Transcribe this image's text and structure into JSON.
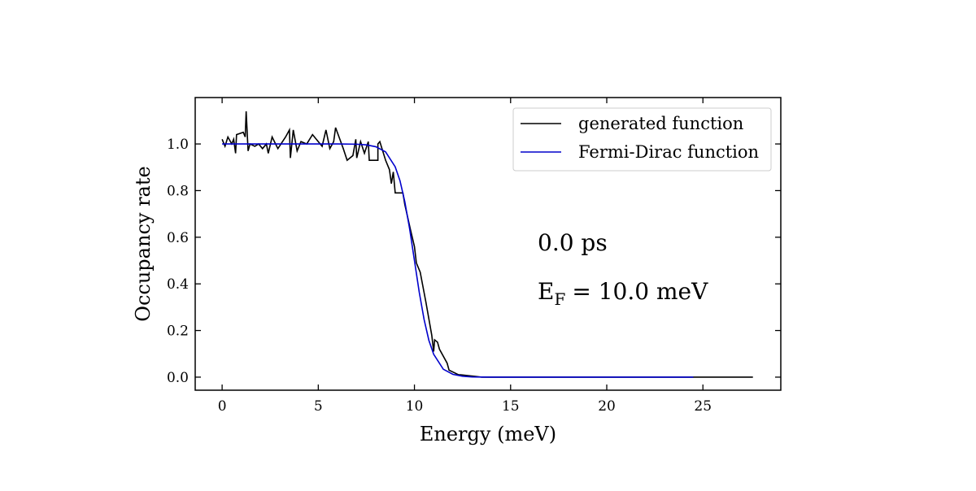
{
  "chart_data": {
    "type": "line",
    "xlabel": "Energy (meV)",
    "ylabel": "Occupancy rate",
    "xlim": [
      -1.4,
      29.05
    ],
    "ylim": [
      -0.056,
      1.199
    ],
    "xticks": [
      0,
      5,
      10,
      15,
      20,
      25
    ],
    "yticks": [
      {
        "value": 0,
        "label": "0.0"
      },
      0.2,
      0.4,
      0.6,
      0.8,
      {
        "value": 1,
        "label": "1.0"
      }
    ],
    "legend": "upper right",
    "annotations": [
      "0.0 ps"
    ],
    "fermi_label": {
      "symbol": "E",
      "subscript": "F",
      "text": "= 10.0 meV"
    },
    "series": [
      {
        "name": "generated function",
        "color": "#000000",
        "x": [
          0,
          0.15,
          0.3,
          0.5,
          0.6,
          0.7,
          0.75,
          1.1,
          1.2,
          1.25,
          1.35,
          1.45,
          1.7,
          1.9,
          2.1,
          2.3,
          2.4,
          2.6,
          2.9,
          3.3,
          3.5,
          3.55,
          3.7,
          3.9,
          4.1,
          4.4,
          4.7,
          5.0,
          5.2,
          5.4,
          5.6,
          5.8,
          5.9,
          6.3,
          6.5,
          6.8,
          6.95,
          7.0,
          7.2,
          7.4,
          7.6,
          7.65,
          8.1,
          8.1,
          8.2,
          8.5,
          8.7,
          8.8,
          8.9,
          9.0,
          9.4,
          9.5,
          9.8,
          10.0,
          10.1,
          10.3,
          10.6,
          10.9,
          11.0,
          11.05,
          11.2,
          11.3,
          11.7,
          11.8,
          12.3,
          12.4,
          13.5,
          14.0,
          15.0,
          20.0,
          25.0,
          27.6
        ],
        "values": [
          1.02,
          0.99,
          1.03,
          1.0,
          1.02,
          0.96,
          1.04,
          1.05,
          1.03,
          1.14,
          0.97,
          1.0,
          0.99,
          1.0,
          0.98,
          1.0,
          0.96,
          1.03,
          0.98,
          1.03,
          1.06,
          0.94,
          1.06,
          0.97,
          1.01,
          1.0,
          1.04,
          1.01,
          0.99,
          1.06,
          0.98,
          1.01,
          1.07,
          0.98,
          0.93,
          0.95,
          1.02,
          0.94,
          1.01,
          0.96,
          1.01,
          0.93,
          0.93,
          1.0,
          1.01,
          0.93,
          0.89,
          0.83,
          0.88,
          0.79,
          0.79,
          0.74,
          0.63,
          0.56,
          0.49,
          0.45,
          0.32,
          0.18,
          0.11,
          0.16,
          0.15,
          0.12,
          0.06,
          0.03,
          0.01,
          0.01,
          0.0,
          0.0,
          0.0,
          0.0,
          0.0,
          0.0
        ]
      },
      {
        "name": "Fermi-Dirac function",
        "color": "#0000cc",
        "x": [
          0,
          1,
          2,
          3,
          4,
          5,
          6,
          7,
          7.5,
          8,
          8.5,
          9,
          9.25,
          9.5,
          9.75,
          10,
          10.25,
          10.5,
          10.75,
          11,
          11.5,
          12,
          12.5,
          13,
          14,
          16,
          18,
          20,
          22,
          24.5
        ],
        "values": [
          1.0,
          1.0,
          1.0,
          1.0,
          1.0,
          1.0,
          1.0,
          0.999,
          0.996,
          0.988,
          0.966,
          0.902,
          0.842,
          0.752,
          0.636,
          0.5,
          0.364,
          0.248,
          0.158,
          0.098,
          0.034,
          0.012,
          0.004,
          0.001,
          0.0,
          0.0,
          0.0,
          0.0,
          0.0,
          0.0
        ]
      }
    ]
  }
}
